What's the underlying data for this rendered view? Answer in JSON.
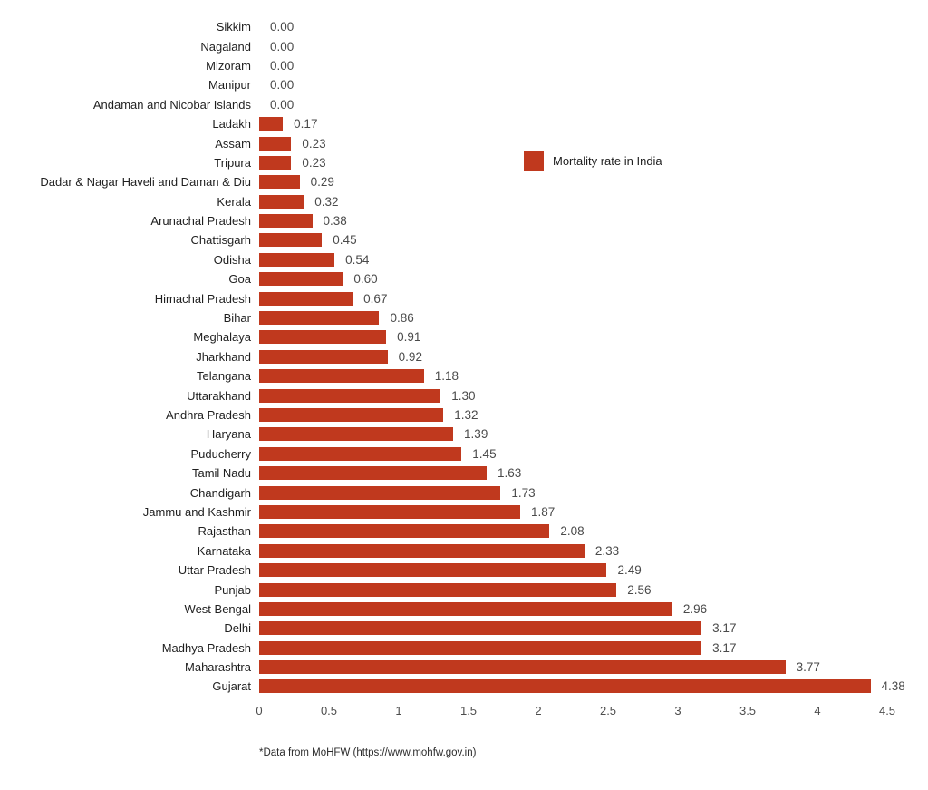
{
  "colors": {
    "bar": "#c0391e",
    "category_text": "#1f1f1f",
    "value_text": "#4a4a4a",
    "tick_text": "#4d4d4d",
    "background": "#ffffff"
  },
  "legend": {
    "label": "Mortality rate in India"
  },
  "footer": {
    "text": "*Data from MoHFW (https://www.mohfw.gov.in)"
  },
  "chart_data": {
    "type": "bar",
    "orientation": "horizontal",
    "title": "",
    "xlabel": "",
    "ylabel": "",
    "legend": "Mortality rate in India",
    "legend_position": "upper-right-inside",
    "grid": false,
    "xlim": [
      0,
      4.5
    ],
    "x_ticks": [
      "0",
      "0.5",
      "1",
      "1.5",
      "2",
      "2.5",
      "3",
      "3.5",
      "4",
      "4.5"
    ],
    "categories": [
      "Sikkim",
      "Nagaland",
      "Mizoram",
      "Manipur",
      "Andaman and Nicobar Islands",
      "Ladakh",
      "Assam",
      "Tripura",
      "Dadar & Nagar Haveli and Daman & Diu",
      "Kerala",
      "Arunachal Pradesh",
      "Chattisgarh",
      "Odisha",
      "Goa",
      "Himachal Pradesh",
      "Bihar",
      "Meghalaya",
      "Jharkhand",
      "Telangana",
      "Uttarakhand",
      "Andhra Pradesh",
      "Haryana",
      "Puducherry",
      "Tamil Nadu",
      "Chandigarh",
      "Jammu and Kashmir",
      "Rajasthan",
      "Karnataka",
      "Uttar Pradesh",
      "Punjab",
      "West Bengal",
      "Delhi",
      "Madhya Pradesh",
      "Maharashtra",
      "Gujarat"
    ],
    "values": [
      0.0,
      0.0,
      0.0,
      0.0,
      0.0,
      0.17,
      0.23,
      0.23,
      0.29,
      0.32,
      0.38,
      0.45,
      0.54,
      0.6,
      0.67,
      0.86,
      0.91,
      0.92,
      1.18,
      1.3,
      1.32,
      1.39,
      1.45,
      1.63,
      1.73,
      1.87,
      2.08,
      2.33,
      2.49,
      2.56,
      2.96,
      3.17,
      3.17,
      3.77,
      4.38
    ],
    "value_labels": [
      "0.00",
      "0.00",
      "0.00",
      "0.00",
      "0.00",
      "0.17",
      "0.23",
      "0.23",
      "0.29",
      "0.32",
      "0.38",
      "0.45",
      "0.54",
      "0.60",
      "0.67",
      "0.86",
      "0.91",
      "0.92",
      "1.18",
      "1.30",
      "1.32",
      "1.39",
      "1.45",
      "1.63",
      "1.73",
      "1.87",
      "2.08",
      "2.33",
      "2.49",
      "2.56",
      "2.96",
      "3.17",
      "3.17",
      "3.77",
      "4.38"
    ],
    "source_note": "*Data from MoHFW (https://www.mohfw.gov.in)"
  }
}
